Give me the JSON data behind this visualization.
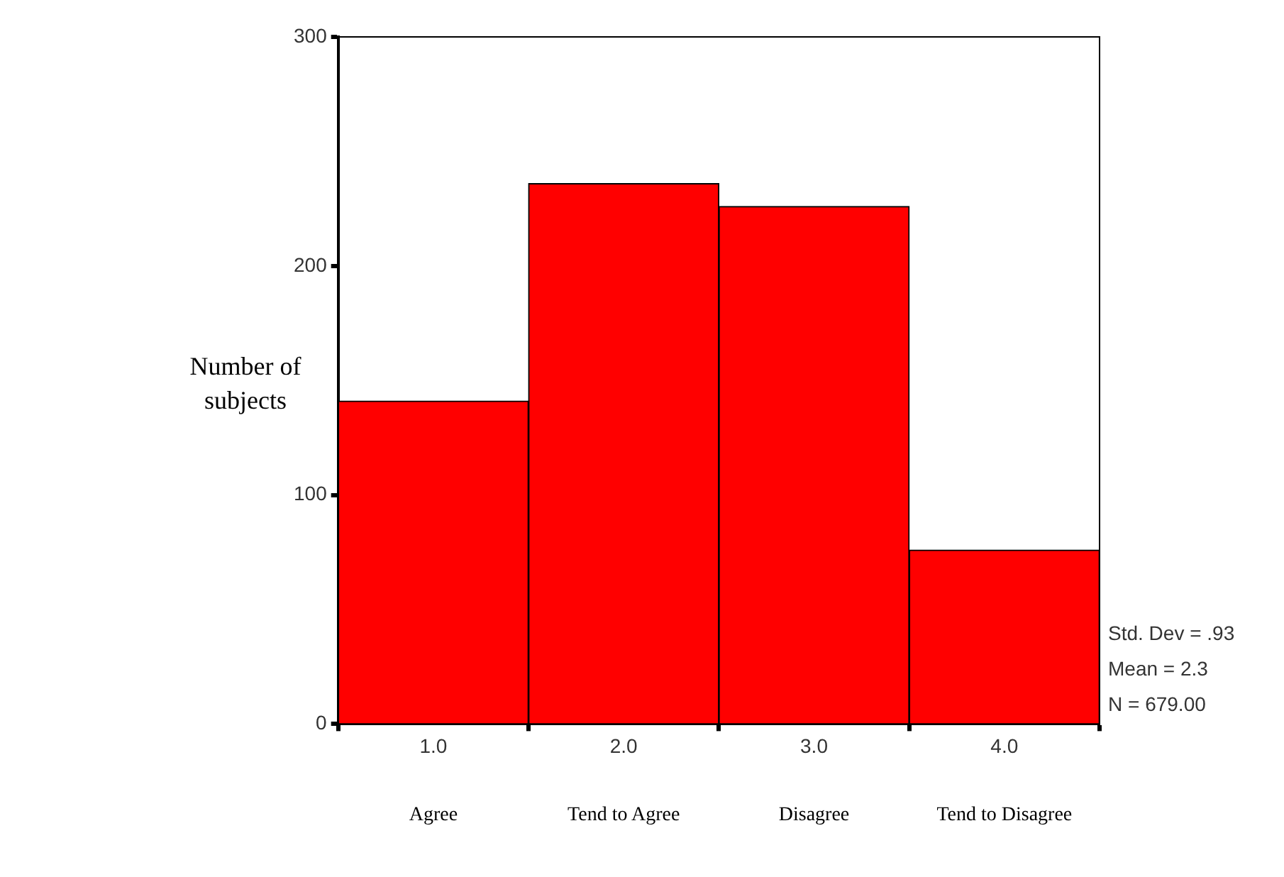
{
  "chart_data": {
    "type": "histogram",
    "ylabel": "Number of subjects",
    "bins": [
      0.5,
      1.5,
      2.5,
      3.5,
      4.5
    ],
    "values": [
      141,
      236,
      226,
      76
    ],
    "color": "#ff0000",
    "xlim": [
      0.5,
      4.5
    ],
    "xticks": [
      {
        "value": 1,
        "label": "1.0"
      },
      {
        "value": 2,
        "label": "2.0"
      },
      {
        "value": 3,
        "label": "3.0"
      },
      {
        "value": 4,
        "label": "4.0"
      }
    ],
    "ylim": [
      0,
      300
    ],
    "yticks": [
      0,
      100,
      200,
      300
    ],
    "grid": false,
    "legend": false,
    "annotations": [
      "Agree",
      "Tend to Agree",
      "Disagree",
      "Tend to Disagree",
      "Std. Dev = .93",
      "Mean = 2.3",
      "N = 679.00"
    ]
  }
}
